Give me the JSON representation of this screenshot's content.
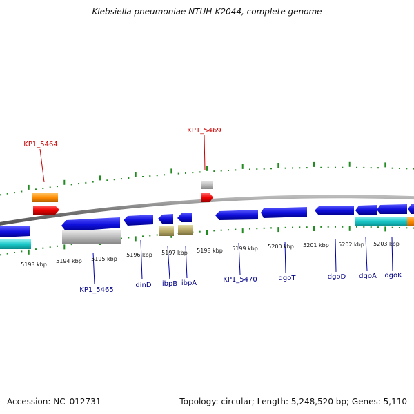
{
  "header": {
    "title": "Klebsiella pneumoniae NTUH-K2044, complete genome"
  },
  "footer": {
    "accession": "Accession: NC_012731",
    "summary": "Topology: circular; Length: 5,248,520 bp; Genes: 5,110"
  },
  "kbp_ticks": [
    "5193 kbp",
    "5194 kbp",
    "5195 kbp",
    "5196 kbp",
    "5197 kbp",
    "5198 kbp",
    "5199 kbp",
    "5200 kbp",
    "5201 kbp",
    "5202 kbp",
    "5203 kbp"
  ],
  "gene_labels": {
    "kp1_5464": "KP1_5464",
    "kp1_5469": "KP1_5469",
    "kp1_5465": "KP1_5465",
    "dinD": "dinD",
    "ibpB": "ibpB",
    "ibpA": "ibpA",
    "kp1_5470": "KP1_5470",
    "dgoT": "dgoT",
    "dgoD": "dgoD",
    "dgoA": "dgoA",
    "dgoK": "dgoK"
  },
  "colors": {
    "forward_gene": "#1010dd",
    "rna_gene": "#ee0000",
    "orange_feature": "#ff8c00",
    "pseudo_gene": "#bbbbbb",
    "cyan_feature": "#19c8c8",
    "khaki_feature": "#b8aa66",
    "tick_green": "#228b22",
    "backbone": "#888888"
  }
}
